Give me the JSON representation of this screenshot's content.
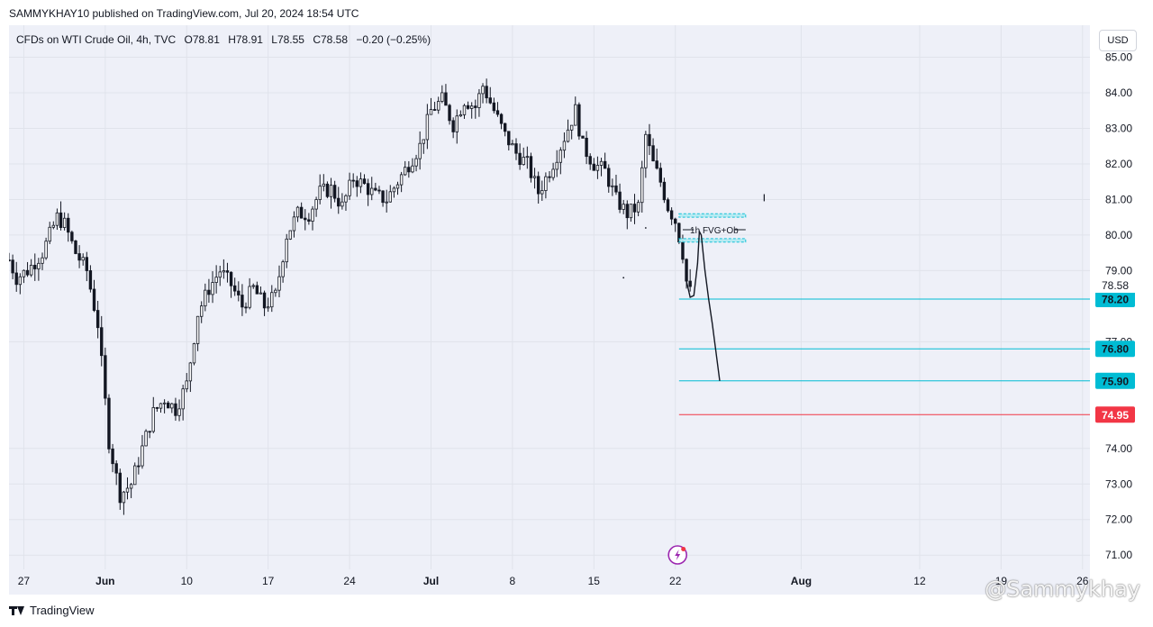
{
  "header": {
    "published": "SAMMYKHAY10 published on TradingView.com, Jul 20, 2024 18:54 UTC"
  },
  "legend": {
    "symbol": "CFDs on WTI Crude Oil, 4h, TVC",
    "open": "O78.81",
    "high": "H78.91",
    "low": "L78.55",
    "close": "C78.58",
    "change": "−0.20 (−0.25%)"
  },
  "currency": "USD",
  "footer": {
    "brand": "TradingView"
  },
  "watermark": "@Sammykhay",
  "colors": {
    "bull": "#131722",
    "level": "#00bcd4",
    "target": "#f23645",
    "box": "#00bcd4",
    "grid": "#f0f3fa",
    "bg": "#eef0f8"
  },
  "chart_data": {
    "type": "candlestick",
    "timeframe": "4h",
    "ylim": [
      70.6,
      85.9
    ],
    "y_ticks": [
      "85.00",
      "84.00",
      "83.00",
      "82.00",
      "81.00",
      "80.00",
      "79.00",
      "77.00",
      "74.00",
      "73.00",
      "72.00",
      "71.00"
    ],
    "x_ticks": [
      {
        "label": "27",
        "bar": 4
      },
      {
        "label": "Jun",
        "bar": 26
      },
      {
        "label": "10",
        "bar": 48
      },
      {
        "label": "17",
        "bar": 70
      },
      {
        "label": "24",
        "bar": 92
      },
      {
        "label": "Jul",
        "bar": 114
      },
      {
        "label": "8",
        "bar": 136
      },
      {
        "label": "15",
        "bar": 158
      },
      {
        "label": "22",
        "bar": 180
      },
      {
        "label": "Aug",
        "bar": 214
      },
      {
        "label": "12",
        "bar": 246
      },
      {
        "label": "19",
        "bar": 268
      },
      {
        "label": "26",
        "bar": 290
      }
    ],
    "x_range": [
      0,
      292
    ],
    "price_path": [
      [
        0,
        79.3
      ],
      [
        2,
        78.8
      ],
      [
        5,
        79.0
      ],
      [
        9,
        79.5
      ],
      [
        13,
        80.5
      ],
      [
        15,
        80.3
      ],
      [
        18,
        79.5
      ],
      [
        21,
        79.0
      ],
      [
        24,
        77.5
      ],
      [
        27,
        74.2
      ],
      [
        30,
        72.7
      ],
      [
        33,
        73.0
      ],
      [
        36,
        74.0
      ],
      [
        39,
        75.0
      ],
      [
        42,
        75.4
      ],
      [
        45,
        75.1
      ],
      [
        48,
        75.8
      ],
      [
        51,
        77.8
      ],
      [
        54,
        78.5
      ],
      [
        57,
        79.0
      ],
      [
        60,
        78.6
      ],
      [
        63,
        78.0
      ],
      [
        66,
        78.5
      ],
      [
        69,
        78.0
      ],
      [
        72,
        78.3
      ],
      [
        75,
        80.0
      ],
      [
        78,
        80.6
      ],
      [
        81,
        80.6
      ],
      [
        84,
        81.2
      ],
      [
        87,
        81.3
      ],
      [
        90,
        80.8
      ],
      [
        93,
        81.6
      ],
      [
        96,
        81.4
      ],
      [
        99,
        81.1
      ],
      [
        102,
        81.0
      ],
      [
        105,
        81.5
      ],
      [
        108,
        82.0
      ],
      [
        111,
        82.5
      ],
      [
        114,
        83.5
      ],
      [
        117,
        83.8
      ],
      [
        120,
        83.1
      ],
      [
        123,
        83.8
      ],
      [
        126,
        83.6
      ],
      [
        128,
        84.2
      ],
      [
        131,
        83.5
      ],
      [
        134,
        82.8
      ],
      [
        137,
        82.3
      ],
      [
        140,
        82.0
      ],
      [
        143,
        81.2
      ],
      [
        146,
        81.8
      ],
      [
        149,
        82.5
      ],
      [
        151,
        83.0
      ],
      [
        153,
        83.5
      ],
      [
        155,
        82.5
      ],
      [
        158,
        82.0
      ],
      [
        161,
        81.8
      ],
      [
        164,
        81.0
      ],
      [
        167,
        80.6
      ],
      [
        170,
        80.8
      ],
      [
        172,
        82.8
      ],
      [
        174,
        82.0
      ],
      [
        176,
        81.5
      ],
      [
        178,
        80.8
      ],
      [
        180,
        80.4
      ],
      [
        182,
        79.5
      ],
      [
        183,
        78.7
      ],
      [
        184,
        78.4
      ]
    ],
    "levels": [
      {
        "label": "78.20",
        "value": 78.2,
        "color": "#00bcd4"
      },
      {
        "label": "76.80",
        "value": 76.8,
        "color": "#00bcd4"
      },
      {
        "label": "75.90",
        "value": 75.9,
        "color": "#00bcd4"
      },
      {
        "label": "74.95",
        "value": 74.95,
        "color": "#f23645"
      }
    ],
    "current_price": {
      "label": "78.58",
      "value": 78.58
    },
    "fvg_zones": [
      {
        "top": 80.6,
        "bottom": 80.5
      },
      {
        "top": 79.9,
        "bottom": 79.8
      }
    ],
    "annotation": {
      "text": "1h FVG+Ob",
      "value": 80.15
    },
    "projection": [
      [
        183,
        78.7
      ],
      [
        184,
        78.25
      ],
      [
        185,
        78.3
      ],
      [
        186,
        79.2
      ],
      [
        186.5,
        80.1
      ],
      [
        187,
        80.0
      ],
      [
        188,
        79.0
      ],
      [
        189,
        78.2
      ],
      [
        190,
        77.5
      ],
      [
        191,
        76.7
      ],
      [
        192,
        75.9
      ]
    ]
  }
}
